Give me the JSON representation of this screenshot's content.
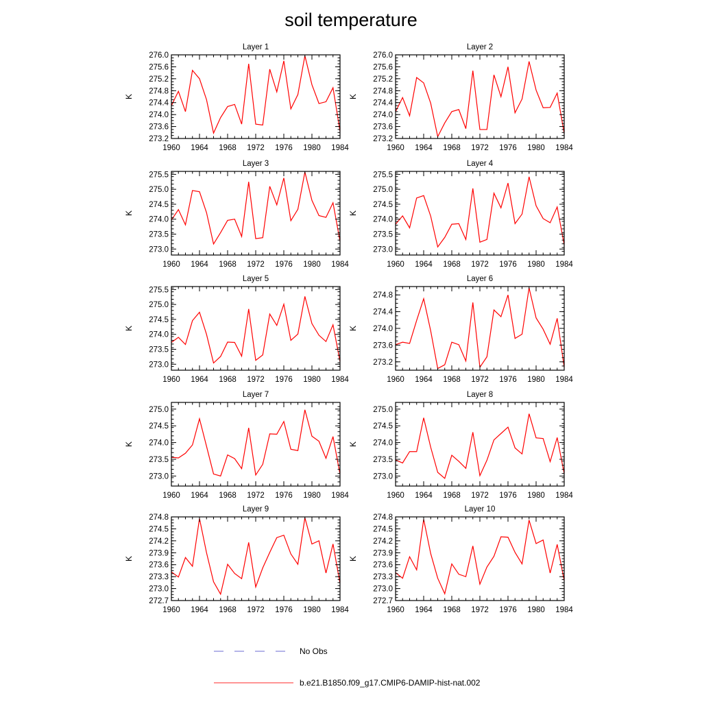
{
  "title": "soil temperature",
  "legend": [
    {
      "label": "No Obs",
      "color": "#6a6ad0",
      "style": "dashed"
    },
    {
      "label": "b.e21.B1850.f09_g17.CMIP6-DAMIP-hist-nat.002",
      "color": "#ff2a2a",
      "style": "solid"
    }
  ],
  "chart_data": [
    {
      "type": "line",
      "title": "Layer 1",
      "ylabel": "K",
      "xlim": [
        1960,
        1984
      ],
      "ylim": [
        273.2,
        276.0
      ],
      "xticks": [
        1960,
        1964,
        1968,
        1972,
        1976,
        1980,
        1984
      ],
      "yticks": [
        273.2,
        273.6,
        274.0,
        274.4,
        274.8,
        275.2,
        275.6,
        276.0
      ],
      "ytick_decimals": 1,
      "x": [
        1960,
        1961,
        1962,
        1963,
        1964,
        1965,
        1966,
        1967,
        1968,
        1969,
        1970,
        1971,
        1972,
        1973,
        1974,
        1975,
        1976,
        1977,
        1978,
        1979,
        1980,
        1981,
        1982,
        1983,
        1984
      ],
      "series": [
        {
          "name": "b.e21.B1850.f09_g17.CMIP6-DAMIP-hist-nat.002",
          "color": "#ff0000",
          "values": [
            274.3,
            274.78,
            274.1,
            275.48,
            275.2,
            274.5,
            273.38,
            273.9,
            274.27,
            274.34,
            273.68,
            275.7,
            273.68,
            273.65,
            275.52,
            274.76,
            275.8,
            274.19,
            274.67,
            275.97,
            275.0,
            274.37,
            274.43,
            274.9,
            273.44
          ]
        }
      ]
    },
    {
      "type": "line",
      "title": "Layer 2",
      "ylabel": "K",
      "xlim": [
        1960,
        1984
      ],
      "ylim": [
        273.2,
        276.0
      ],
      "xticks": [
        1960,
        1964,
        1968,
        1972,
        1976,
        1980,
        1984
      ],
      "yticks": [
        273.2,
        273.6,
        274.0,
        274.4,
        274.8,
        275.2,
        275.6,
        276.0
      ],
      "ytick_decimals": 1,
      "x": [
        1960,
        1961,
        1962,
        1963,
        1964,
        1965,
        1966,
        1967,
        1968,
        1969,
        1970,
        1971,
        1972,
        1973,
        1974,
        1975,
        1976,
        1977,
        1978,
        1979,
        1980,
        1981,
        1982,
        1983,
        1984
      ],
      "series": [
        {
          "name": "b.e21.B1850.f09_g17.CMIP6-DAMIP-hist-nat.002",
          "color": "#ff0000",
          "values": [
            274.1,
            274.57,
            273.96,
            275.24,
            275.06,
            274.38,
            273.26,
            273.72,
            274.1,
            274.17,
            273.53,
            275.47,
            273.5,
            273.5,
            275.33,
            274.6,
            275.6,
            274.06,
            274.52,
            275.78,
            274.82,
            274.23,
            274.24,
            274.72,
            273.37
          ]
        }
      ]
    },
    {
      "type": "line",
      "title": "Layer 3",
      "ylabel": "K",
      "xlim": [
        1960,
        1984
      ],
      "ylim": [
        272.8,
        275.6
      ],
      "xticks": [
        1960,
        1964,
        1968,
        1972,
        1976,
        1980,
        1984
      ],
      "yticks": [
        273.0,
        273.5,
        274.0,
        274.5,
        275.0,
        275.5
      ],
      "ytick_decimals": 1,
      "x": [
        1960,
        1961,
        1962,
        1963,
        1964,
        1965,
        1966,
        1967,
        1968,
        1969,
        1970,
        1971,
        1972,
        1973,
        1974,
        1975,
        1976,
        1977,
        1978,
        1979,
        1980,
        1981,
        1982,
        1983,
        1984
      ],
      "series": [
        {
          "name": "b.e21.B1850.f09_g17.CMIP6-DAMIP-hist-nat.002",
          "color": "#ff0000",
          "values": [
            273.97,
            274.32,
            273.81,
            274.96,
            274.92,
            274.22,
            273.17,
            273.55,
            273.96,
            274.0,
            273.42,
            275.25,
            273.35,
            273.38,
            275.1,
            274.48,
            275.38,
            273.95,
            274.33,
            275.58,
            274.63,
            274.12,
            274.06,
            274.55,
            273.26
          ]
        }
      ]
    },
    {
      "type": "line",
      "title": "Layer 4",
      "ylabel": "K",
      "xlim": [
        1960,
        1984
      ],
      "ylim": [
        272.8,
        275.6
      ],
      "xticks": [
        1960,
        1964,
        1968,
        1972,
        1976,
        1980,
        1984
      ],
      "yticks": [
        273.0,
        273.5,
        274.0,
        274.5,
        275.0,
        275.5
      ],
      "ytick_decimals": 1,
      "x": [
        1960,
        1961,
        1962,
        1963,
        1964,
        1965,
        1966,
        1967,
        1968,
        1969,
        1970,
        1971,
        1972,
        1973,
        1974,
        1975,
        1976,
        1977,
        1978,
        1979,
        1980,
        1981,
        1982,
        1983,
        1984
      ],
      "series": [
        {
          "name": "b.e21.B1850.f09_g17.CMIP6-DAMIP-hist-nat.002",
          "color": "#ff0000",
          "values": [
            273.83,
            274.11,
            273.71,
            274.71,
            274.79,
            274.1,
            273.07,
            273.39,
            273.83,
            273.85,
            273.32,
            275.03,
            273.23,
            273.32,
            274.87,
            274.38,
            275.21,
            273.85,
            274.17,
            275.42,
            274.45,
            274.02,
            273.88,
            274.41,
            273.14
          ]
        }
      ]
    },
    {
      "type": "line",
      "title": "Layer 5",
      "ylabel": "K",
      "xlim": [
        1960,
        1984
      ],
      "ylim": [
        272.8,
        275.6
      ],
      "xticks": [
        1960,
        1964,
        1968,
        1972,
        1976,
        1980,
        1984
      ],
      "yticks": [
        273.0,
        273.5,
        274.0,
        274.5,
        275.0,
        275.5
      ],
      "ytick_decimals": 1,
      "x": [
        1960,
        1961,
        1962,
        1963,
        1964,
        1965,
        1966,
        1967,
        1968,
        1969,
        1970,
        1971,
        1972,
        1973,
        1974,
        1975,
        1976,
        1977,
        1978,
        1979,
        1980,
        1981,
        1982,
        1983,
        1984
      ],
      "series": [
        {
          "name": "b.e21.B1850.f09_g17.CMIP6-DAMIP-hist-nat.002",
          "color": "#ff0000",
          "values": [
            273.73,
            273.9,
            273.66,
            274.46,
            274.74,
            274.0,
            273.04,
            273.26,
            273.74,
            273.73,
            273.27,
            274.85,
            273.13,
            273.31,
            274.68,
            274.3,
            275.01,
            273.8,
            274.01,
            275.27,
            274.36,
            273.97,
            273.76,
            274.32,
            273.09
          ]
        }
      ]
    },
    {
      "type": "line",
      "title": "Layer 6",
      "ylabel": "K",
      "xlim": [
        1960,
        1984
      ],
      "ylim": [
        273.0,
        275.0
      ],
      "xticks": [
        1960,
        1964,
        1968,
        1972,
        1976,
        1980,
        1984
      ],
      "yticks": [
        273.2,
        273.6,
        274.0,
        274.4,
        274.8
      ],
      "ytick_decimals": 1,
      "x": [
        1960,
        1961,
        1962,
        1963,
        1964,
        1965,
        1966,
        1967,
        1968,
        1969,
        1970,
        1971,
        1972,
        1973,
        1974,
        1975,
        1976,
        1977,
        1978,
        1979,
        1980,
        1981,
        1982,
        1983,
        1984
      ],
      "series": [
        {
          "name": "b.e21.B1850.f09_g17.CMIP6-DAMIP-hist-nat.002",
          "color": "#ff0000",
          "values": [
            273.61,
            273.67,
            273.64,
            274.19,
            274.71,
            273.94,
            273.04,
            273.13,
            273.67,
            273.61,
            273.22,
            274.62,
            273.07,
            273.32,
            274.44,
            274.28,
            274.8,
            273.76,
            273.86,
            274.97,
            274.25,
            273.98,
            273.62,
            274.24,
            273.07
          ]
        }
      ]
    },
    {
      "type": "line",
      "title": "Layer 7",
      "ylabel": "K",
      "xlim": [
        1960,
        1984
      ],
      "ylim": [
        272.7,
        275.2
      ],
      "xticks": [
        1960,
        1964,
        1968,
        1972,
        1976,
        1980,
        1984
      ],
      "yticks": [
        273.0,
        273.5,
        274.0,
        274.5,
        275.0
      ],
      "ytick_decimals": 1,
      "x": [
        1960,
        1961,
        1962,
        1963,
        1964,
        1965,
        1966,
        1967,
        1968,
        1969,
        1970,
        1971,
        1972,
        1973,
        1974,
        1975,
        1976,
        1977,
        1978,
        1979,
        1980,
        1981,
        1982,
        1983,
        1984
      ],
      "series": [
        {
          "name": "b.e21.B1850.f09_g17.CMIP6-DAMIP-hist-nat.002",
          "color": "#ff0000",
          "values": [
            273.56,
            273.54,
            273.68,
            273.93,
            274.71,
            273.89,
            273.06,
            273.0,
            273.63,
            273.52,
            273.22,
            274.44,
            273.03,
            273.35,
            274.26,
            274.25,
            274.63,
            273.8,
            273.76,
            274.98,
            274.19,
            274.04,
            273.53,
            274.18,
            273.05
          ]
        }
      ]
    },
    {
      "type": "line",
      "title": "Layer 8",
      "ylabel": "K",
      "xlim": [
        1960,
        1984
      ],
      "ylim": [
        272.7,
        275.2
      ],
      "xticks": [
        1960,
        1964,
        1968,
        1972,
        1976,
        1980,
        1984
      ],
      "yticks": [
        273.0,
        273.5,
        274.0,
        274.5,
        275.0
      ],
      "ytick_decimals": 1,
      "x": [
        1960,
        1961,
        1962,
        1963,
        1964,
        1965,
        1966,
        1967,
        1968,
        1969,
        1970,
        1971,
        1972,
        1973,
        1974,
        1975,
        1976,
        1977,
        1978,
        1979,
        1980,
        1981,
        1982,
        1983,
        1984
      ],
      "series": [
        {
          "name": "b.e21.B1850.f09_g17.CMIP6-DAMIP-hist-nat.002",
          "color": "#ff0000",
          "values": [
            273.48,
            273.39,
            273.73,
            273.73,
            274.74,
            273.86,
            273.11,
            272.93,
            273.62,
            273.44,
            273.23,
            274.31,
            273.01,
            273.47,
            274.08,
            274.27,
            274.46,
            273.84,
            273.66,
            274.86,
            274.14,
            274.12,
            273.43,
            274.15,
            273.07
          ]
        }
      ]
    },
    {
      "type": "line",
      "title": "Layer 9",
      "ylabel": "K",
      "xlim": [
        1960,
        1984
      ],
      "ylim": [
        272.7,
        274.8
      ],
      "xticks": [
        1960,
        1964,
        1968,
        1972,
        1976,
        1980,
        1984
      ],
      "yticks": [
        272.7,
        273.0,
        273.3,
        273.6,
        273.9,
        274.2,
        274.5,
        274.8
      ],
      "ytick_decimals": 1,
      "x": [
        1960,
        1961,
        1962,
        1963,
        1964,
        1965,
        1966,
        1967,
        1968,
        1969,
        1970,
        1971,
        1972,
        1973,
        1974,
        1975,
        1976,
        1977,
        1978,
        1979,
        1980,
        1981,
        1982,
        1983,
        1984
      ],
      "series": [
        {
          "name": "b.e21.B1850.f09_g17.CMIP6-DAMIP-hist-nat.002",
          "color": "#ff0000",
          "values": [
            273.42,
            273.29,
            273.78,
            273.56,
            274.76,
            273.9,
            273.17,
            272.86,
            273.61,
            273.38,
            273.25,
            274.16,
            273.04,
            273.52,
            273.91,
            274.28,
            274.34,
            273.87,
            273.61,
            274.78,
            274.12,
            274.2,
            273.39,
            274.12,
            273.13
          ]
        }
      ]
    },
    {
      "type": "line",
      "title": "Layer 10",
      "ylabel": "K",
      "xlim": [
        1960,
        1984
      ],
      "ylim": [
        272.7,
        274.8
      ],
      "xticks": [
        1960,
        1964,
        1968,
        1972,
        1976,
        1980,
        1984
      ],
      "yticks": [
        272.7,
        273.0,
        273.3,
        273.6,
        273.9,
        274.2,
        274.5,
        274.8
      ],
      "ytick_decimals": 1,
      "x": [
        1960,
        1961,
        1962,
        1963,
        1964,
        1965,
        1966,
        1967,
        1968,
        1969,
        1970,
        1971,
        1972,
        1973,
        1974,
        1975,
        1976,
        1977,
        1978,
        1979,
        1980,
        1981,
        1982,
        1983,
        1984
      ],
      "series": [
        {
          "name": "b.e21.B1850.f09_g17.CMIP6-DAMIP-hist-nat.002",
          "color": "#ff0000",
          "values": [
            273.4,
            273.26,
            273.8,
            273.47,
            274.74,
            273.88,
            273.26,
            272.87,
            273.62,
            273.36,
            273.3,
            274.07,
            273.11,
            273.54,
            273.81,
            274.3,
            274.29,
            273.91,
            273.62,
            274.72,
            274.13,
            274.22,
            273.39,
            274.11,
            273.2
          ]
        }
      ]
    }
  ]
}
